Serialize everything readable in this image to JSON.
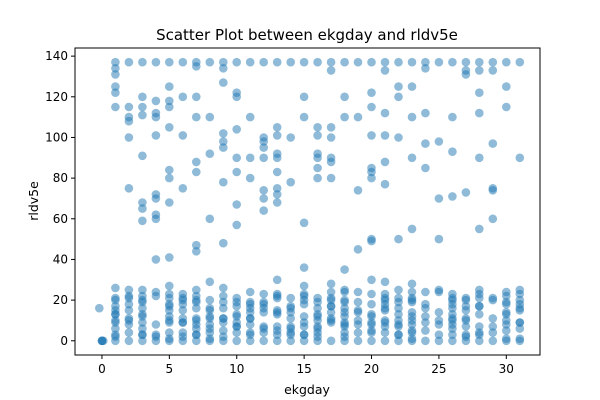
{
  "chart_data": {
    "type": "scatter",
    "title": "Scatter Plot between ekgday and rldv5e",
    "xlabel": "ekgday",
    "ylabel": "rldv5e",
    "xlim": [
      -2.0,
      32.5
    ],
    "ylim": [
      -7,
      144
    ],
    "xticks": [
      0,
      5,
      10,
      15,
      20,
      25,
      30
    ],
    "yticks": [
      0,
      20,
      40,
      60,
      80,
      100,
      120,
      140
    ],
    "grid": false,
    "legend": "none",
    "marker_color": "#1f77b4",
    "marker_alpha": 0.5,
    "top_row": [
      [
        1,
        137
      ],
      [
        2,
        137
      ],
      [
        3,
        137
      ],
      [
        4,
        137
      ],
      [
        5,
        137
      ],
      [
        6,
        137
      ],
      [
        7,
        137
      ],
      [
        8,
        137
      ],
      [
        9,
        137
      ],
      [
        10,
        137
      ],
      [
        11,
        137
      ],
      [
        12,
        137
      ],
      [
        13,
        137
      ],
      [
        14,
        137
      ],
      [
        15,
        137
      ],
      [
        16,
        137
      ],
      [
        17,
        137
      ],
      [
        18,
        137
      ],
      [
        19,
        137
      ],
      [
        20,
        137
      ],
      [
        21,
        137
      ],
      [
        22,
        137
      ],
      [
        23,
        137
      ],
      [
        24,
        137
      ],
      [
        25,
        137
      ],
      [
        26,
        137
      ],
      [
        27,
        137
      ],
      [
        28,
        137
      ],
      [
        29,
        137
      ],
      [
        30,
        137
      ],
      [
        31,
        137
      ],
      [
        1,
        131
      ],
      [
        1,
        134
      ],
      [
        7,
        135
      ],
      [
        9,
        134
      ],
      [
        17,
        133
      ],
      [
        21,
        133
      ],
      [
        24,
        134
      ],
      [
        27,
        131
      ],
      [
        27,
        133
      ],
      [
        28,
        133
      ],
      [
        29,
        133
      ]
    ],
    "mid_points": [
      [
        1,
        125
      ],
      [
        1,
        122
      ],
      [
        1,
        115
      ],
      [
        2,
        115
      ],
      [
        2,
        110
      ],
      [
        2,
        108
      ],
      [
        2,
        100
      ],
      [
        2,
        75
      ],
      [
        3,
        120
      ],
      [
        3,
        115
      ],
      [
        3,
        111
      ],
      [
        3,
        91
      ],
      [
        3,
        68
      ],
      [
        3,
        65
      ],
      [
        3,
        59
      ],
      [
        4,
        118
      ],
      [
        4,
        112
      ],
      [
        4,
        110
      ],
      [
        4,
        101
      ],
      [
        4,
        72
      ],
      [
        4,
        70
      ],
      [
        4,
        62
      ],
      [
        4,
        60
      ],
      [
        4,
        40
      ],
      [
        5,
        125
      ],
      [
        5,
        118
      ],
      [
        5,
        115
      ],
      [
        5,
        105
      ],
      [
        5,
        84
      ],
      [
        5,
        80
      ],
      [
        5,
        68
      ],
      [
        5,
        41
      ],
      [
        6,
        120
      ],
      [
        6,
        101
      ],
      [
        6,
        75
      ],
      [
        7,
        120
      ],
      [
        7,
        110
      ],
      [
        7,
        88
      ],
      [
        7,
        83
      ],
      [
        7,
        47
      ],
      [
        7,
        44
      ],
      [
        8,
        110
      ],
      [
        8,
        92
      ],
      [
        8,
        60
      ],
      [
        9,
        127
      ],
      [
        9,
        102
      ],
      [
        9,
        98
      ],
      [
        9,
        95
      ],
      [
        9,
        78
      ],
      [
        9,
        48
      ],
      [
        10,
        122
      ],
      [
        10,
        120
      ],
      [
        10,
        104
      ],
      [
        10,
        90
      ],
      [
        10,
        83
      ],
      [
        10,
        67
      ],
      [
        10,
        57
      ],
      [
        11,
        110
      ],
      [
        11,
        90
      ],
      [
        11,
        80
      ],
      [
        12,
        100
      ],
      [
        12,
        98
      ],
      [
        12,
        95
      ],
      [
        12,
        90
      ],
      [
        12,
        74
      ],
      [
        12,
        70
      ],
      [
        12,
        64
      ],
      [
        13,
        105
      ],
      [
        13,
        101
      ],
      [
        13,
        92
      ],
      [
        13,
        90
      ],
      [
        13,
        83
      ],
      [
        13,
        75
      ],
      [
        13,
        72
      ],
      [
        13,
        68
      ],
      [
        14,
        100
      ],
      [
        14,
        78
      ],
      [
        15,
        120
      ],
      [
        15,
        110
      ],
      [
        15,
        58
      ],
      [
        15,
        36
      ],
      [
        16,
        105
      ],
      [
        16,
        101
      ],
      [
        16,
        92
      ],
      [
        16,
        90
      ],
      [
        16,
        85
      ],
      [
        16,
        80
      ],
      [
        17,
        105
      ],
      [
        17,
        100
      ],
      [
        17,
        90
      ],
      [
        17,
        88
      ],
      [
        17,
        80
      ],
      [
        18,
        120
      ],
      [
        18,
        110
      ],
      [
        18,
        35
      ],
      [
        19,
        110
      ],
      [
        19,
        74
      ],
      [
        19,
        45
      ],
      [
        20,
        122
      ],
      [
        20,
        115
      ],
      [
        20,
        101
      ],
      [
        20,
        85
      ],
      [
        20,
        83
      ],
      [
        20,
        80
      ],
      [
        20,
        50
      ],
      [
        20,
        49
      ],
      [
        21,
        112
      ],
      [
        21,
        101
      ],
      [
        21,
        88
      ],
      [
        21,
        77
      ],
      [
        22,
        125
      ],
      [
        22,
        120
      ],
      [
        22,
        100
      ],
      [
        22,
        50
      ],
      [
        23,
        125
      ],
      [
        23,
        110
      ],
      [
        23,
        90
      ],
      [
        23,
        55
      ],
      [
        24,
        112
      ],
      [
        24,
        97
      ],
      [
        24,
        85
      ],
      [
        25,
        98
      ],
      [
        25,
        70
      ],
      [
        25,
        50
      ],
      [
        26,
        110
      ],
      [
        26,
        93
      ],
      [
        26,
        71
      ],
      [
        27,
        73
      ],
      [
        28,
        122
      ],
      [
        28,
        112
      ],
      [
        28,
        90
      ],
      [
        28,
        55
      ],
      [
        29,
        97
      ],
      [
        29,
        75
      ],
      [
        29,
        74
      ],
      [
        29,
        60
      ],
      [
        30,
        115
      ],
      [
        30,
        125
      ],
      [
        31,
        90
      ]
    ],
    "low_band": {
      "description": "dense band of points for every ekgday 0-31",
      "y_values": [
        0,
        2,
        4,
        6,
        8,
        10,
        12,
        14,
        16,
        18,
        20,
        22,
        24
      ]
    },
    "extra_low": [
      [
        -0.2,
        16
      ],
      [
        0,
        0
      ],
      [
        0.1,
        0
      ],
      [
        1,
        26
      ],
      [
        3,
        25
      ],
      [
        5,
        27
      ],
      [
        8,
        29
      ],
      [
        9,
        26
      ],
      [
        13,
        30
      ],
      [
        15,
        27
      ],
      [
        17,
        28
      ],
      [
        18,
        25
      ],
      [
        20,
        30
      ],
      [
        21,
        29
      ],
      [
        23,
        28
      ],
      [
        25,
        25
      ],
      [
        28,
        25
      ],
      [
        31,
        25
      ]
    ]
  }
}
